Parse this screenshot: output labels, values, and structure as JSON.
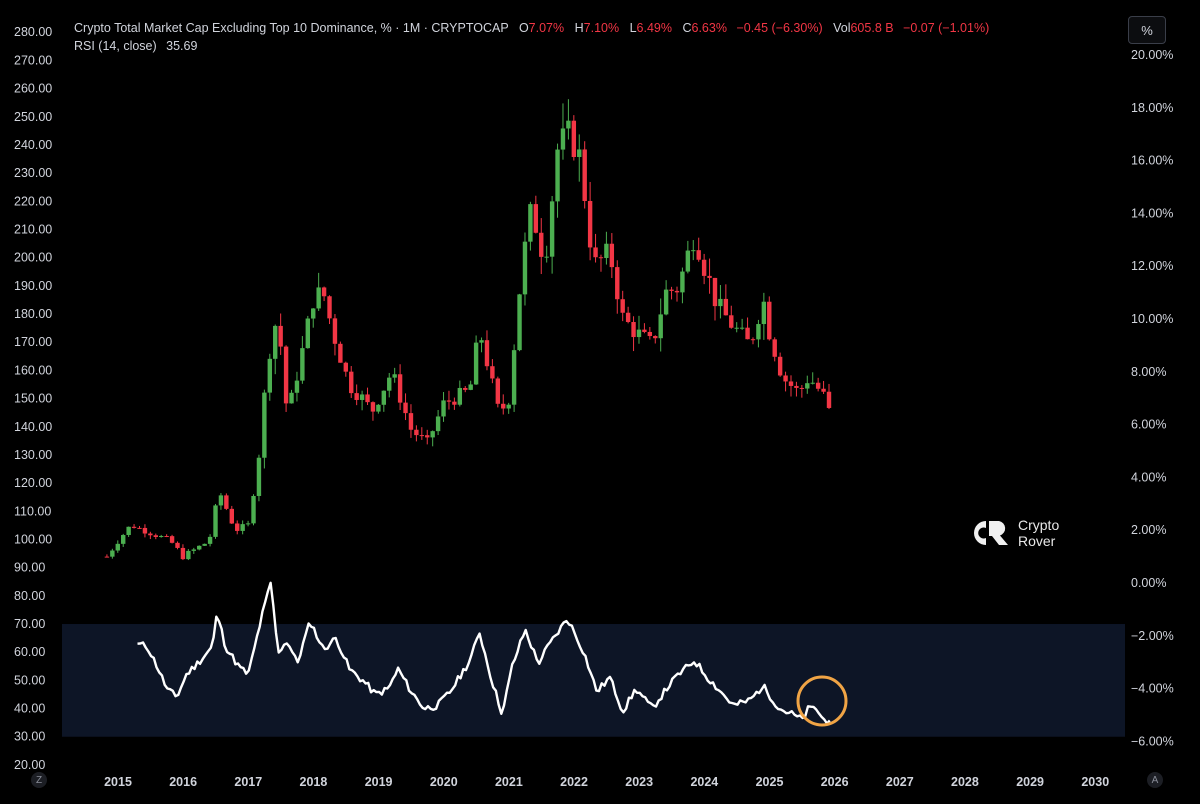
{
  "header": {
    "title": "Crypto Total Market Cap Excluding Top 10 Dominance, % · 1M · CRYPTOCAP",
    "o_label": "O",
    "o_value": "7.07%",
    "h_label": "H",
    "h_value": "7.10%",
    "l_label": "L",
    "l_value": "6.49%",
    "c_label": "C",
    "c_value": "6.63%",
    "change": "−0.45 (−6.30%)",
    "vol_label": "Vol",
    "vol_value": "605.8 B",
    "vol_change": "−0.07 (−1.01%)",
    "rsi_label": "RSI (14, close)",
    "rsi_value": "35.69"
  },
  "toolbar": {
    "percent_button": "%",
    "left_corner": "Z",
    "right_corner": "A"
  },
  "watermark": {
    "line1": "Crypto",
    "line2": "Rover"
  },
  "colors": {
    "up": "#26a69a",
    "up_body": "#4caf50",
    "down": "#f23645",
    "rsi_line": "#ffffff",
    "rsi_band": "#0d1526",
    "highlight": "#f0a445"
  },
  "chart_data": {
    "type": "candlestick",
    "title": "Crypto Total Market Cap Excluding Top 10 Dominance, %",
    "interval": "1M",
    "left_axis": {
      "ticks": [
        "280.00",
        "270.00",
        "260.00",
        "250.00",
        "240.00",
        "230.00",
        "220.00",
        "210.00",
        "200.00",
        "190.00",
        "180.00",
        "170.00",
        "160.00",
        "150.00",
        "140.00",
        "130.00",
        "120.00",
        "110.00",
        "100.00",
        "90.00",
        "80.00",
        "70.00",
        "60.00",
        "50.00",
        "40.00",
        "30.00",
        "20.00"
      ],
      "range": [
        15,
        285
      ]
    },
    "right_axis": {
      "ticks": [
        "20.00%",
        "18.00%",
        "16.00%",
        "14.00%",
        "12.00%",
        "10.00%",
        "8.00%",
        "6.00%",
        "4.00%",
        "2.00%",
        "0.00%",
        "−2.00%",
        "−4.00%",
        "−6.00%"
      ],
      "range": [
        -7,
        21
      ]
    },
    "x_axis": {
      "ticks": [
        "2015",
        "2016",
        "2017",
        "2018",
        "2019",
        "2020",
        "2021",
        "2022",
        "2023",
        "2024",
        "2025",
        "2026",
        "2027",
        "2028",
        "2029",
        "2030"
      ],
      "range": [
        2014.75,
        2030.6
      ]
    },
    "price_anchors": [
      [
        2014.83,
        1.0
      ],
      [
        2015.0,
        1.6
      ],
      [
        2015.2,
        2.2
      ],
      [
        2015.5,
        1.9
      ],
      [
        2015.8,
        1.6
      ],
      [
        2016.0,
        1.0
      ],
      [
        2016.4,
        1.6
      ],
      [
        2016.55,
        3.5
      ],
      [
        2016.8,
        2.0
      ],
      [
        2017.0,
        2.2
      ],
      [
        2017.15,
        4.5
      ],
      [
        2017.3,
        8.5
      ],
      [
        2017.45,
        10.2
      ],
      [
        2017.6,
        6.3
      ],
      [
        2017.85,
        9.0
      ],
      [
        2018.0,
        10.8
      ],
      [
        2018.15,
        11.0
      ],
      [
        2018.3,
        9.5
      ],
      [
        2018.55,
        7.5
      ],
      [
        2018.75,
        7.0
      ],
      [
        2018.9,
        6.5
      ],
      [
        2019.2,
        8.0
      ],
      [
        2019.5,
        5.8
      ],
      [
        2019.75,
        5.3
      ],
      [
        2020.0,
        6.8
      ],
      [
        2020.4,
        7.3
      ],
      [
        2020.55,
        9.6
      ],
      [
        2020.85,
        6.4
      ],
      [
        2021.0,
        7.0
      ],
      [
        2021.2,
        12.0
      ],
      [
        2021.35,
        14.2
      ],
      [
        2021.55,
        12.2
      ],
      [
        2021.75,
        16.5
      ],
      [
        2021.95,
        17.0
      ],
      [
        2022.1,
        16.0
      ],
      [
        2022.3,
        12.0
      ],
      [
        2022.55,
        12.5
      ],
      [
        2022.75,
        10.0
      ],
      [
        2022.95,
        9.5
      ],
      [
        2023.2,
        9.0
      ],
      [
        2023.4,
        11.0
      ],
      [
        2023.6,
        11.2
      ],
      [
        2023.85,
        13.3
      ],
      [
        2024.0,
        12.0
      ],
      [
        2024.2,
        10.5
      ],
      [
        2024.45,
        9.7
      ],
      [
        2024.7,
        9.0
      ],
      [
        2024.9,
        10.8
      ],
      [
        2025.0,
        9.5
      ],
      [
        2025.2,
        7.8
      ],
      [
        2025.45,
        7.2
      ],
      [
        2025.6,
        7.8
      ],
      [
        2025.8,
        7.2
      ],
      [
        2025.95,
        6.63
      ]
    ],
    "rsi_anchors": [
      [
        2015.3,
        63
      ],
      [
        2015.45,
        62
      ],
      [
        2015.6,
        55
      ],
      [
        2015.75,
        47
      ],
      [
        2015.9,
        44
      ],
      [
        2016.05,
        52
      ],
      [
        2016.3,
        58
      ],
      [
        2016.45,
        62
      ],
      [
        2016.52,
        74
      ],
      [
        2016.65,
        62
      ],
      [
        2016.85,
        55
      ],
      [
        2017.0,
        52
      ],
      [
        2017.2,
        72
      ],
      [
        2017.35,
        85
      ],
      [
        2017.45,
        60
      ],
      [
        2017.6,
        64
      ],
      [
        2017.75,
        56
      ],
      [
        2017.95,
        71
      ],
      [
        2018.15,
        61
      ],
      [
        2018.35,
        65
      ],
      [
        2018.55,
        54
      ],
      [
        2018.8,
        49
      ],
      [
        2018.95,
        45
      ],
      [
        2019.15,
        47
      ],
      [
        2019.3,
        54
      ],
      [
        2019.5,
        46
      ],
      [
        2019.7,
        40
      ],
      [
        2019.9,
        41
      ],
      [
        2020.1,
        46
      ],
      [
        2020.4,
        57
      ],
      [
        2020.55,
        67
      ],
      [
        2020.75,
        49
      ],
      [
        2020.9,
        38
      ],
      [
        2021.05,
        55
      ],
      [
        2021.25,
        68
      ],
      [
        2021.45,
        56
      ],
      [
        2021.6,
        62
      ],
      [
        2021.9,
        72
      ],
      [
        2022.15,
        60
      ],
      [
        2022.35,
        46
      ],
      [
        2022.55,
        51
      ],
      [
        2022.75,
        39
      ],
      [
        2022.95,
        47
      ],
      [
        2023.2,
        40
      ],
      [
        2023.45,
        48
      ],
      [
        2023.6,
        52
      ],
      [
        2023.85,
        57
      ],
      [
        2024.05,
        51
      ],
      [
        2024.25,
        46
      ],
      [
        2024.45,
        41
      ],
      [
        2024.7,
        43
      ],
      [
        2024.9,
        48
      ],
      [
        2025.15,
        40
      ],
      [
        2025.35,
        38
      ],
      [
        2025.5,
        36
      ],
      [
        2025.6,
        40
      ],
      [
        2025.72,
        40
      ],
      [
        2025.82,
        36
      ],
      [
        2025.95,
        35.7
      ]
    ],
    "rsi_band": [
      30,
      70
    ]
  }
}
